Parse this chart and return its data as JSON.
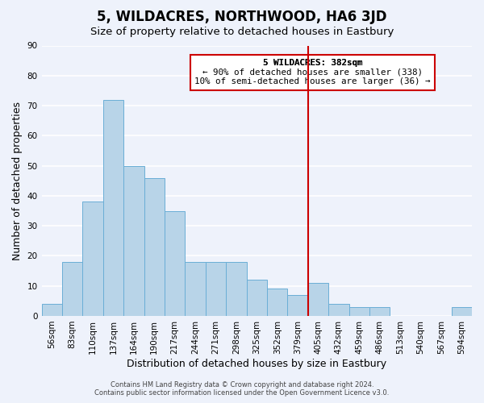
{
  "title": "5, WILDACRES, NORTHWOOD, HA6 3JD",
  "subtitle": "Size of property relative to detached houses in Eastbury",
  "xlabel": "Distribution of detached houses by size in Eastbury",
  "ylabel": "Number of detached properties",
  "bar_labels": [
    "56sqm",
    "83sqm",
    "110sqm",
    "137sqm",
    "164sqm",
    "190sqm",
    "217sqm",
    "244sqm",
    "271sqm",
    "298sqm",
    "325sqm",
    "352sqm",
    "379sqm",
    "405sqm",
    "432sqm",
    "459sqm",
    "486sqm",
    "513sqm",
    "540sqm",
    "567sqm",
    "594sqm"
  ],
  "bar_values": [
    4,
    18,
    38,
    72,
    50,
    46,
    35,
    18,
    18,
    18,
    12,
    9,
    7,
    11,
    4,
    3,
    3,
    0,
    0,
    0,
    3
  ],
  "bar_color": "#b8d4e8",
  "bar_edge_color": "#6aaed6",
  "vline_x": 12.5,
  "vline_color": "#cc0000",
  "annotation_title": "5 WILDACRES: 382sqm",
  "annotation_line1": "← 90% of detached houses are smaller (338)",
  "annotation_line2": "10% of semi-detached houses are larger (36) →",
  "annotation_box_color": "#ffffff",
  "annotation_box_edge": "#cc0000",
  "footer_line1": "Contains HM Land Registry data © Crown copyright and database right 2024.",
  "footer_line2": "Contains public sector information licensed under the Open Government Licence v3.0.",
  "ylim": [
    0,
    90
  ],
  "yticks": [
    0,
    10,
    20,
    30,
    40,
    50,
    60,
    70,
    80,
    90
  ],
  "bg_color": "#eef2fb",
  "grid_color": "#ffffff",
  "title_fontsize": 12,
  "subtitle_fontsize": 9.5,
  "axis_label_fontsize": 9,
  "tick_fontsize": 7.5
}
